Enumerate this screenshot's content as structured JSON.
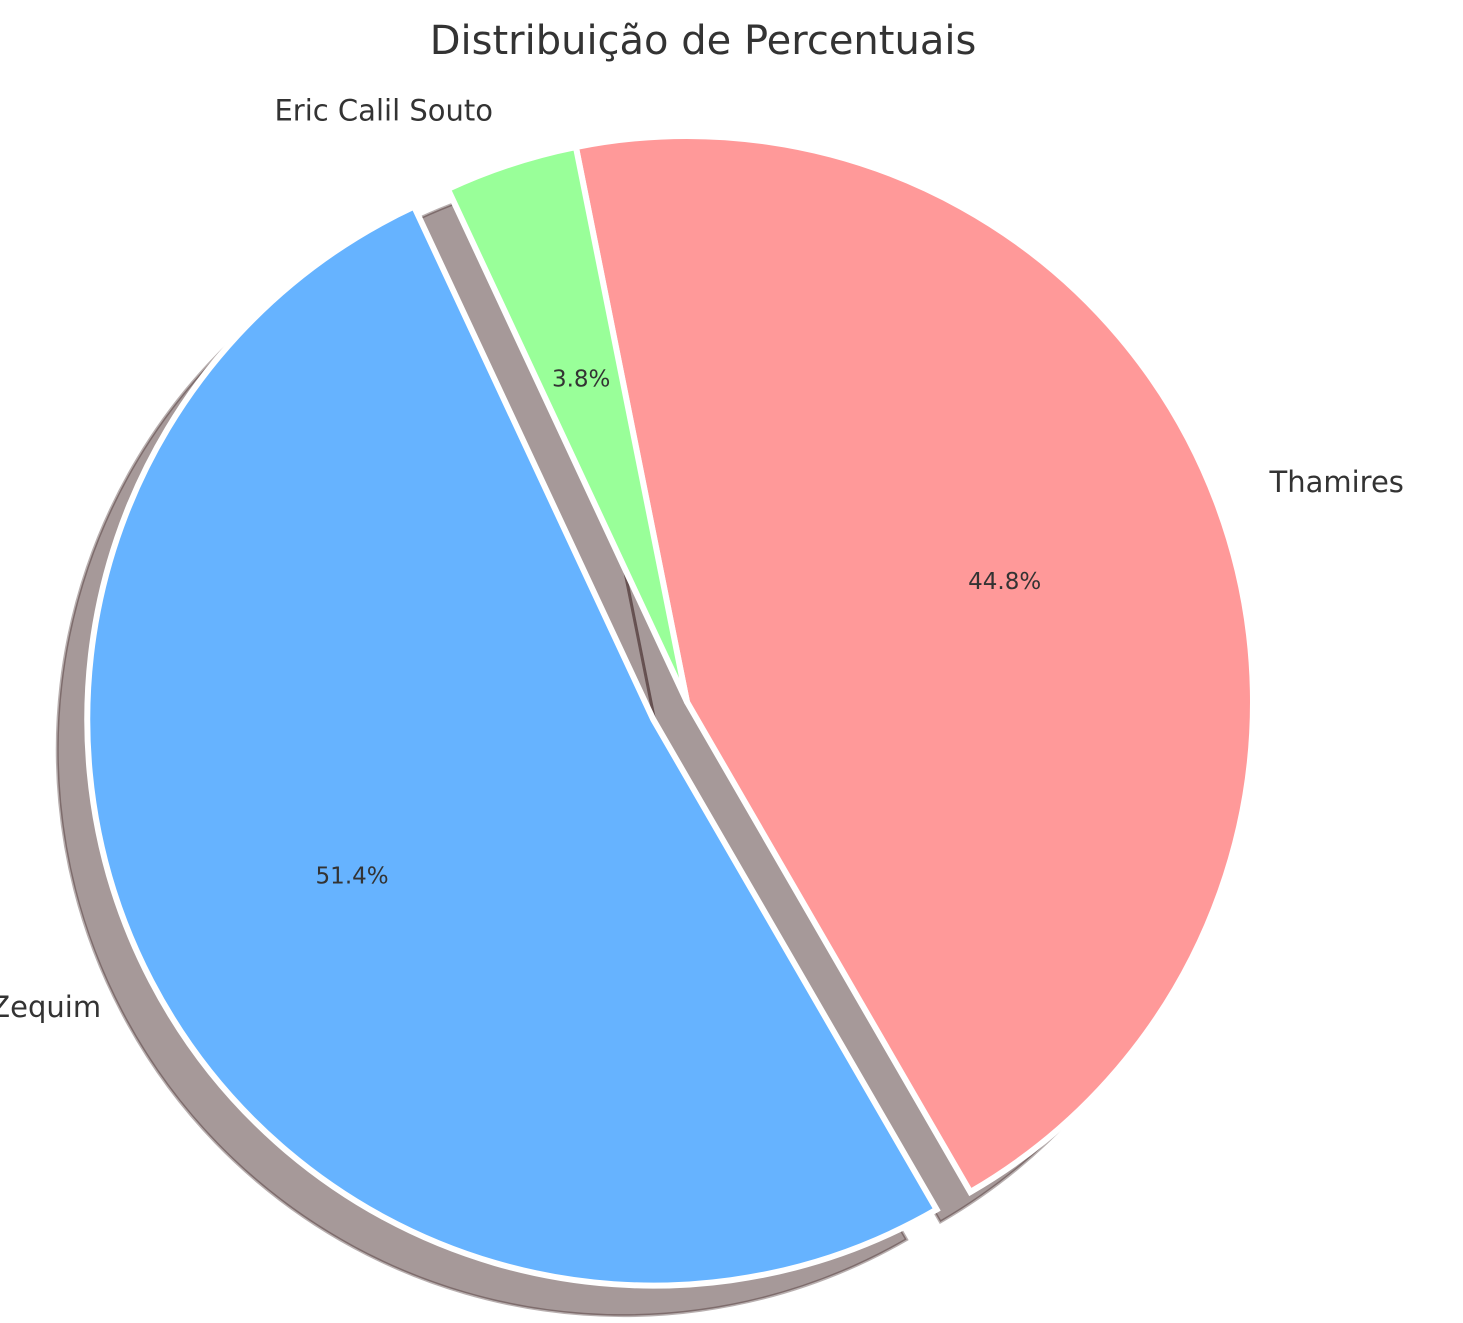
{
  "chart_data": {
    "type": "pie",
    "title": "Distribuição de Percentuais",
    "slices": [
      {
        "label": "Enzo Zequim",
        "value": 51.4,
        "pct_label": "51.4%",
        "color": "#66b3ff",
        "exploded": true
      },
      {
        "label": "Thamires",
        "value": 44.8,
        "pct_label": "44.8%",
        "color": "#ff9999",
        "exploded": false
      },
      {
        "label": "Eric Calil Souto",
        "value": 3.8,
        "pct_label": "3.8%",
        "color": "#99ff99",
        "exploded": false
      }
    ],
    "shadow": true,
    "edge_color": "#ffffff"
  }
}
